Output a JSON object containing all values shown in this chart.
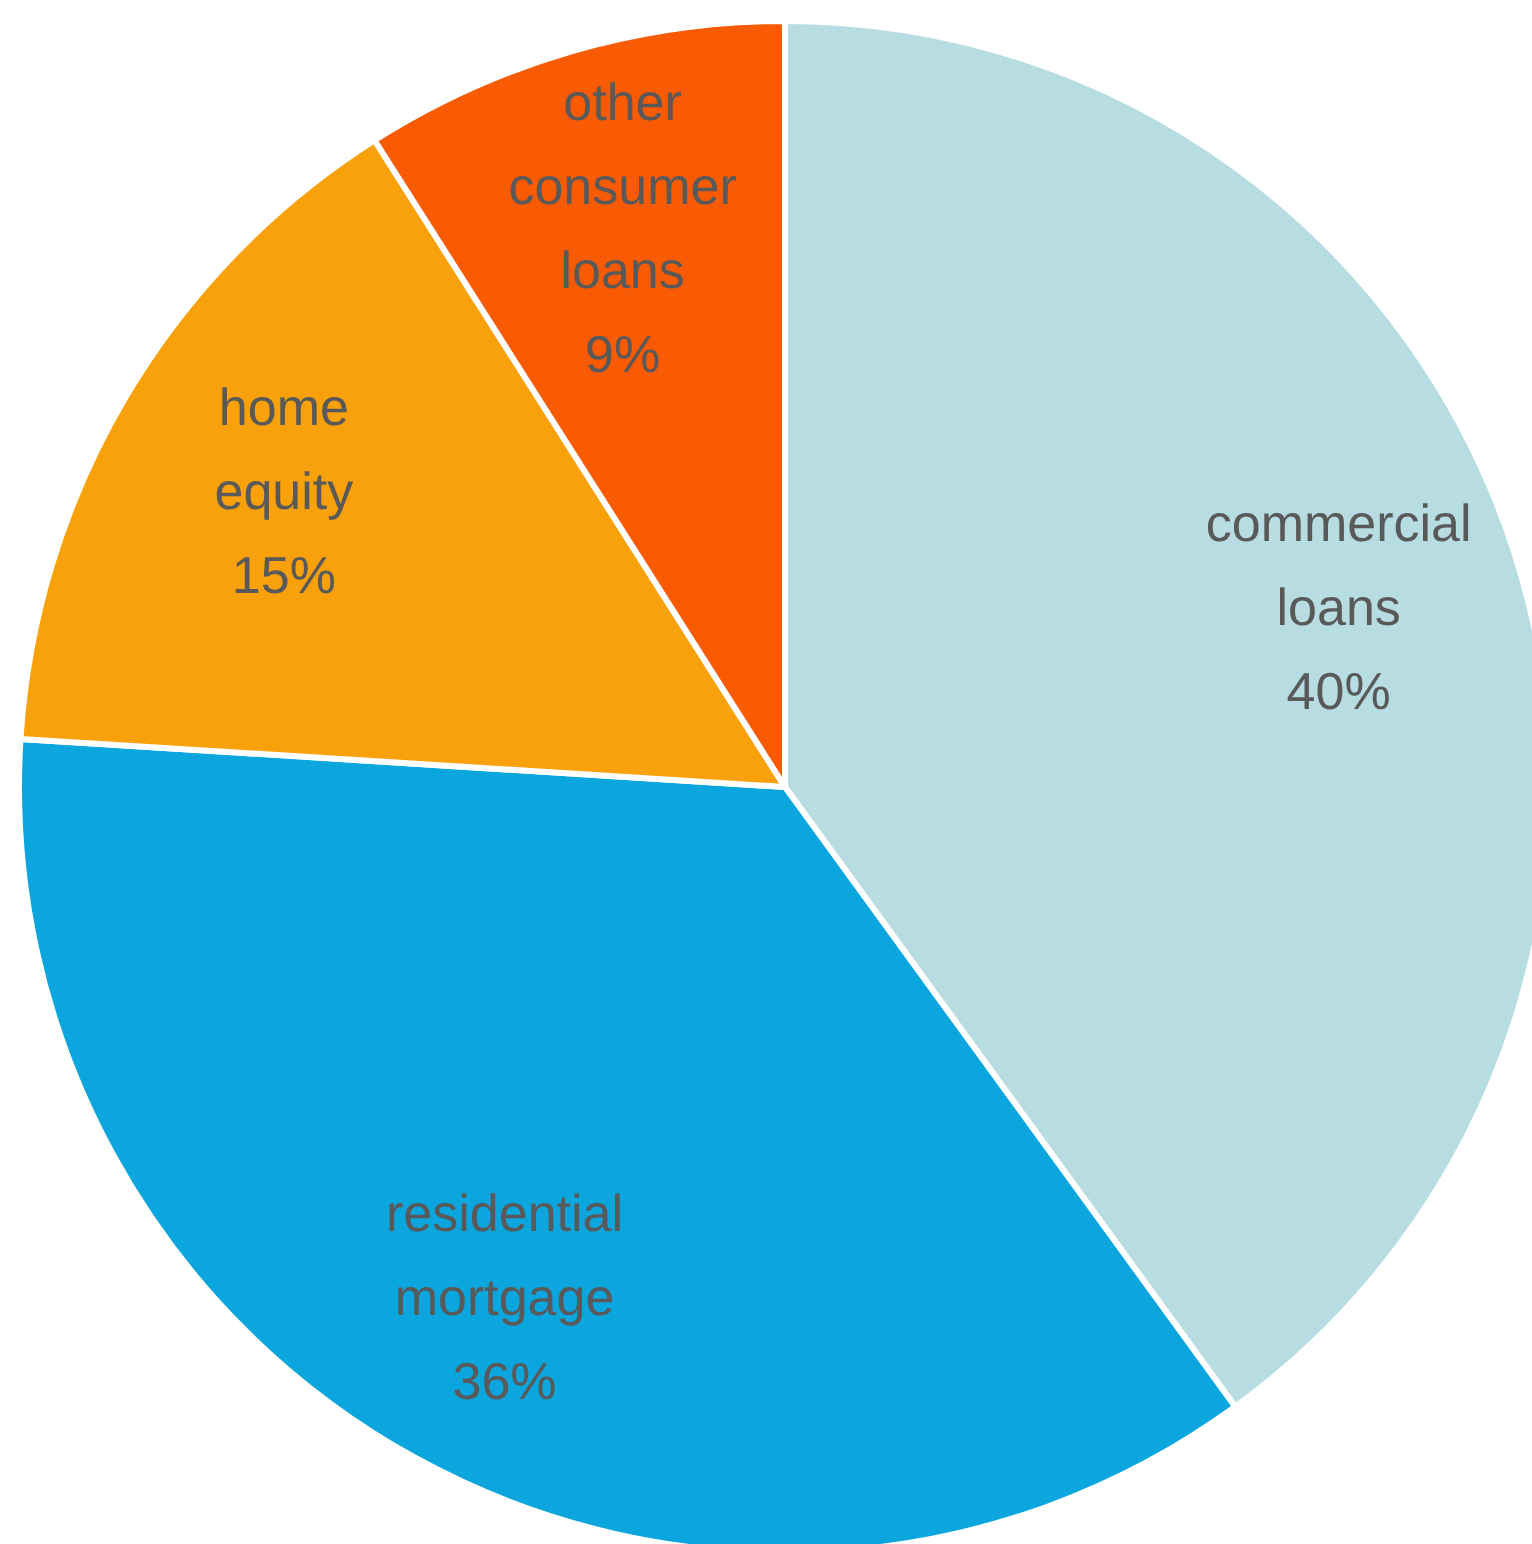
{
  "chart_data": {
    "type": "pie",
    "categories": [
      "commercial loans",
      "residential mortgage",
      "home equity",
      "other consumer loans"
    ],
    "values": [
      40,
      36,
      15,
      9
    ],
    "colors": [
      "#b7dde2",
      "#0ba6dd",
      "#f9a10a",
      "#f95b04"
    ],
    "value_labels": [
      "40%",
      "36%",
      "15%",
      "9%"
    ]
  }
}
